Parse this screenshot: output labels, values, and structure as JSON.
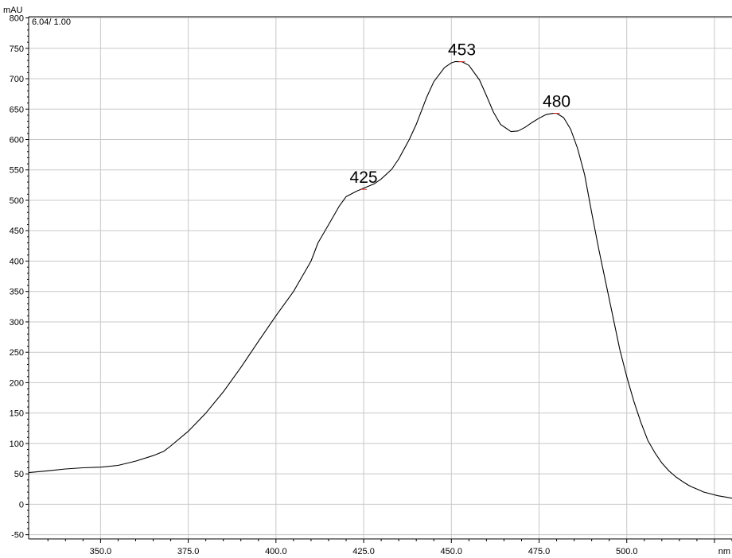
{
  "chart_data": {
    "type": "line",
    "title": "",
    "xlabel": "nm",
    "ylabel": "mAU",
    "info_text": "6.04/ 1.00",
    "xlim": [
      329.5,
      530
    ],
    "ylim": [
      -57,
      802
    ],
    "x_ticks": [
      350,
      375,
      400,
      425,
      450,
      475,
      500
    ],
    "x_tick_labels": [
      "350.0",
      "375.0",
      "400.0",
      "425.0",
      "450.0",
      "475.0",
      "500.0"
    ],
    "y_ticks": [
      -50,
      0,
      50,
      100,
      150,
      200,
      250,
      300,
      350,
      400,
      450,
      500,
      550,
      600,
      650,
      700,
      750,
      800
    ],
    "y_tick_labels": [
      "-50",
      "0",
      "50",
      "100",
      "150",
      "200",
      "250",
      "300",
      "350",
      "400",
      "450",
      "500",
      "550",
      "600",
      "650",
      "700",
      "750",
      "800"
    ],
    "grid": true,
    "annotations": [
      {
        "text": "425",
        "x": 425,
        "y": 518
      },
      {
        "text": "453",
        "x": 453,
        "y": 728
      },
      {
        "text": "480",
        "x": 480,
        "y": 643
      }
    ],
    "series": [
      {
        "color": "#000000",
        "x": [
          329.5,
          335,
          340,
          345,
          350,
          355,
          360,
          365,
          368,
          370,
          375,
          380,
          385,
          390,
          395,
          400,
          405,
          410,
          412,
          415,
          418,
          420,
          423,
          425,
          428,
          430,
          433,
          435,
          438,
          440,
          443,
          445,
          448,
          450,
          451,
          453,
          455,
          458,
          460,
          462,
          464,
          467,
          469,
          471,
          473,
          475,
          477,
          479,
          480,
          482,
          484,
          486,
          488,
          490,
          492,
          494,
          496,
          498,
          500,
          502,
          504,
          506,
          508,
          510,
          512,
          514,
          516,
          518,
          520,
          522,
          524,
          526,
          528,
          530
        ],
        "y": [
          52,
          55,
          58,
          60,
          61,
          64,
          71,
          80,
          87,
          96,
          120,
          150,
          185,
          225,
          268,
          310,
          350,
          400,
          430,
          460,
          490,
          506,
          515,
          520,
          527,
          535,
          551,
          568,
          600,
          625,
          670,
          695,
          718,
          726,
          728,
          728,
          722,
          698,
          672,
          645,
          625,
          613,
          614,
          620,
          628,
          635,
          641,
          643,
          643,
          636,
          617,
          585,
          542,
          480,
          420,
          365,
          310,
          255,
          210,
          170,
          135,
          105,
          85,
          68,
          55,
          45,
          37,
          30,
          25,
          20,
          17,
          14,
          12,
          10
        ]
      }
    ]
  }
}
